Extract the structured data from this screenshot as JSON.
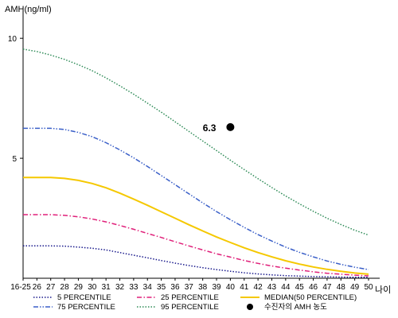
{
  "chart_data": {
    "type": "line",
    "ylabel": "AMH(ng/ml)",
    "xlabel": "나이",
    "ylim": [
      0,
      11
    ],
    "xlim": [
      25,
      50
    ],
    "yticks": [
      "10",
      "5"
    ],
    "yticks_values": [
      10,
      5
    ],
    "xtick_labels": [
      "16-25",
      "26",
      "27",
      "28",
      "29",
      "30",
      "31",
      "32",
      "33",
      "34",
      "35",
      "36",
      "37",
      "38",
      "39",
      "40",
      "41",
      "42",
      "43",
      "44",
      "45",
      "46",
      "47",
      "48",
      "49",
      "50"
    ],
    "grid": false,
    "legend_position": "bottom",
    "series": [
      {
        "name": "5 PERCENTILE",
        "color": "#1a1a8c",
        "style": "dotted",
        "x": [
          25,
          26,
          27,
          28,
          29,
          30,
          31,
          32,
          33,
          34,
          35,
          36,
          37,
          38,
          39,
          40,
          41,
          42,
          43,
          44,
          45,
          46,
          47,
          48,
          49,
          50
        ],
        "values": [
          1.35,
          1.35,
          1.35,
          1.34,
          1.3,
          1.25,
          1.18,
          1.07,
          0.96,
          0.85,
          0.74,
          0.63,
          0.53,
          0.44,
          0.36,
          0.29,
          0.23,
          0.18,
          0.14,
          0.11,
          0.09,
          0.07,
          0.06,
          0.05,
          0.04,
          0.04
        ]
      },
      {
        "name": "25 PERCENTILE",
        "color": "#e0207a",
        "style": "dashdot",
        "x": [
          25,
          26,
          27,
          28,
          29,
          30,
          31,
          32,
          33,
          34,
          35,
          36,
          37,
          38,
          39,
          40,
          41,
          42,
          43,
          44,
          45,
          46,
          47,
          48,
          49,
          50
        ],
        "values": [
          2.65,
          2.65,
          2.65,
          2.62,
          2.56,
          2.47,
          2.35,
          2.2,
          2.04,
          1.87,
          1.7,
          1.52,
          1.35,
          1.18,
          1.02,
          0.88,
          0.74,
          0.62,
          0.51,
          0.42,
          0.34,
          0.27,
          0.21,
          0.17,
          0.13,
          0.1
        ]
      },
      {
        "name": "MEDIAN(50 PERCENTILE)",
        "color": "#f5c800",
        "style": "solid",
        "x": [
          25,
          26,
          27,
          28,
          29,
          30,
          31,
          32,
          33,
          34,
          35,
          36,
          37,
          38,
          39,
          40,
          41,
          42,
          43,
          44,
          45,
          46,
          47,
          48,
          49,
          50
        ],
        "values": [
          4.2,
          4.2,
          4.2,
          4.16,
          4.08,
          3.95,
          3.77,
          3.55,
          3.3,
          3.04,
          2.77,
          2.5,
          2.23,
          1.97,
          1.72,
          1.49,
          1.27,
          1.07,
          0.89,
          0.73,
          0.59,
          0.47,
          0.37,
          0.29,
          0.22,
          0.17
        ]
      },
      {
        "name": "75 PERCENTILE",
        "color": "#3a5fc8",
        "style": "dashdotdot",
        "x": [
          25,
          26,
          27,
          28,
          29,
          30,
          31,
          32,
          33,
          34,
          35,
          36,
          37,
          38,
          39,
          40,
          41,
          42,
          43,
          44,
          45,
          46,
          47,
          48,
          49,
          50
        ],
        "values": [
          6.25,
          6.25,
          6.25,
          6.2,
          6.08,
          5.9,
          5.65,
          5.35,
          5.02,
          4.66,
          4.28,
          3.9,
          3.52,
          3.14,
          2.78,
          2.44,
          2.12,
          1.82,
          1.55,
          1.3,
          1.08,
          0.89,
          0.72,
          0.58,
          0.46,
          0.36
        ]
      },
      {
        "name": "95 PERCENTILE",
        "color": "#2e8b57",
        "style": "dotted",
        "x": [
          25,
          26,
          27,
          28,
          29,
          30,
          31,
          32,
          33,
          34,
          35,
          36,
          37,
          38,
          39,
          40,
          41,
          42,
          43,
          44,
          45,
          46,
          47,
          48,
          49,
          50
        ],
        "values": [
          9.55,
          9.45,
          9.3,
          9.12,
          8.9,
          8.65,
          8.35,
          8.02,
          7.67,
          7.3,
          6.92,
          6.52,
          6.12,
          5.72,
          5.32,
          4.92,
          4.53,
          4.15,
          3.78,
          3.43,
          3.1,
          2.79,
          2.5,
          2.24,
          2.0,
          1.8
        ]
      }
    ],
    "point": {
      "name": "수진자의 AMH 농도",
      "x": 40,
      "y": 6.3,
      "label": "6.3",
      "color": "#000000"
    }
  }
}
